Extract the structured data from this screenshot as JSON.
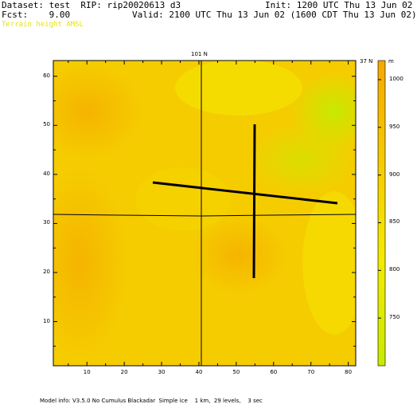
{
  "header": {
    "dataset": "Dataset: test  RIP: rip20020613 d3",
    "init": "Init: 1200 UTC Thu 13 Jun 02",
    "fcst": "Fcst:    9.00",
    "valid": "Valid: 2100 UTC Thu 13 Jun 02 (1600 CDT Thu 13 Jun 02)",
    "field": "Terrain height AMSL"
  },
  "map": {
    "top_label": "101 N",
    "corner_label": "37 N",
    "x_ticks": [
      "10",
      "20",
      "30",
      "40",
      "50",
      "60",
      "70",
      "80"
    ],
    "y_ticks": [
      "10",
      "20",
      "30",
      "40",
      "50",
      "60"
    ]
  },
  "colorbar": {
    "unit": "m",
    "labels": [
      "1000",
      "950",
      "900",
      "850",
      "800",
      "750"
    ]
  },
  "footer": {
    "model_info": "Model info: V3.5.0 No Cumulus Blackadar  Simple ice    1 km,  29 levels,    3 sec"
  },
  "colors": {
    "low": "#c8ea00",
    "mid": "#f5e600",
    "high": "#f5b000",
    "frame": "#000000"
  }
}
